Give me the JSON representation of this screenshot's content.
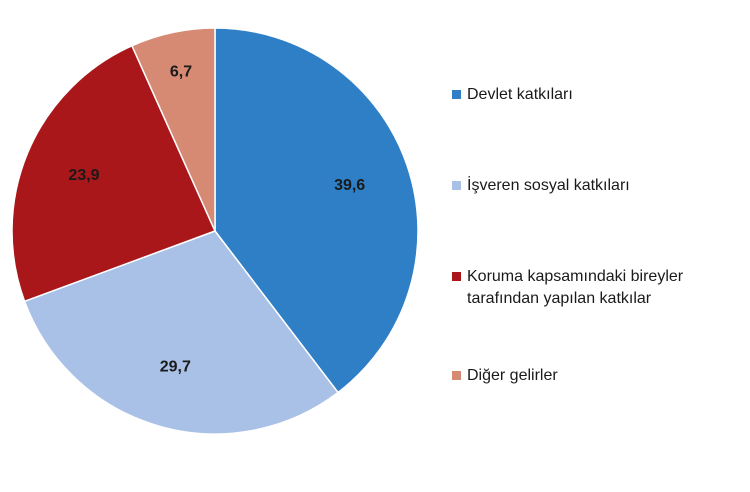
{
  "chart_data": {
    "type": "pie",
    "categories": [
      "Devlet katkıları",
      "İşveren sosyal katkıları",
      "Koruma kapsamındaki bireyler tarafından yapılan katkılar",
      "Diğer gelirler"
    ],
    "values": [
      39.6,
      29.7,
      23.9,
      6.7
    ],
    "value_labels": [
      "39,6",
      "29,7",
      "23,9",
      "6,7"
    ],
    "colors": [
      "#2e7fc6",
      "#a9c1e6",
      "#a9171a",
      "#d68a73"
    ]
  }
}
